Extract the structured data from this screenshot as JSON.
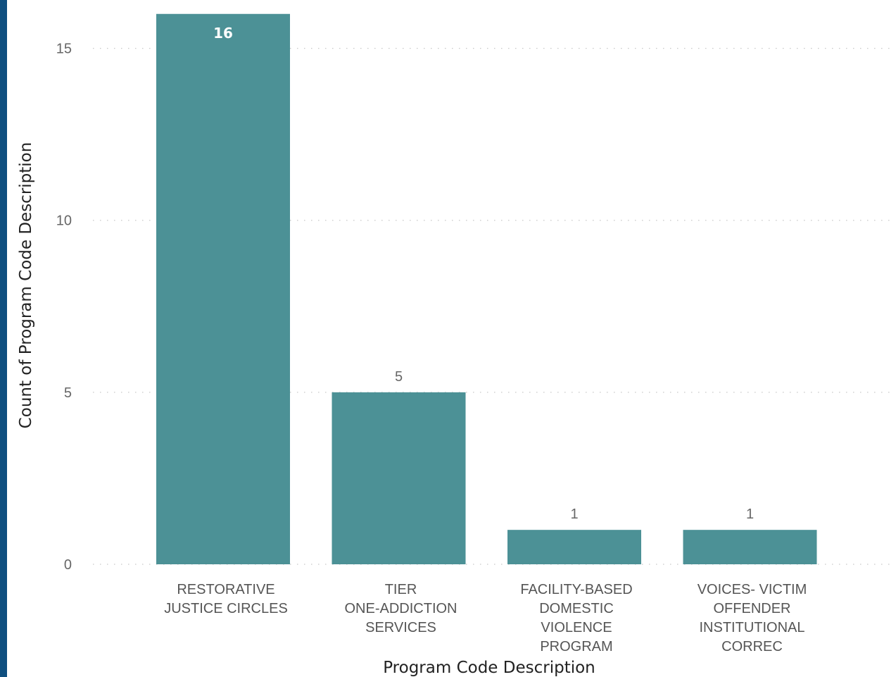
{
  "colors": {
    "bar": "#4c9196",
    "left_border": "#0f4f7f",
    "grid": "#c8c8c8"
  },
  "chart_data": {
    "type": "bar",
    "categories": [
      [
        "RESTORATIVE",
        "JUSTICE CIRCLES"
      ],
      [
        "TIER",
        "ONE-ADDICTION",
        "SERVICES"
      ],
      [
        "FACILITY-BASED",
        "DOMESTIC",
        "VIOLENCE",
        "PROGRAM"
      ],
      [
        "VOICES- VICTIM",
        "OFFENDER",
        "INSTITUTIONAL",
        "CORREC"
      ]
    ],
    "values": [
      16,
      5,
      1,
      1
    ],
    "data_labels": [
      "16",
      "5",
      "1",
      "1"
    ],
    "xlabel": "Program Code Description",
    "ylabel": "Count of Program Code Description",
    "yticks": [
      0,
      5,
      10,
      15
    ],
    "ylim": [
      0,
      16.2
    ],
    "grid": true,
    "legend": "none"
  }
}
